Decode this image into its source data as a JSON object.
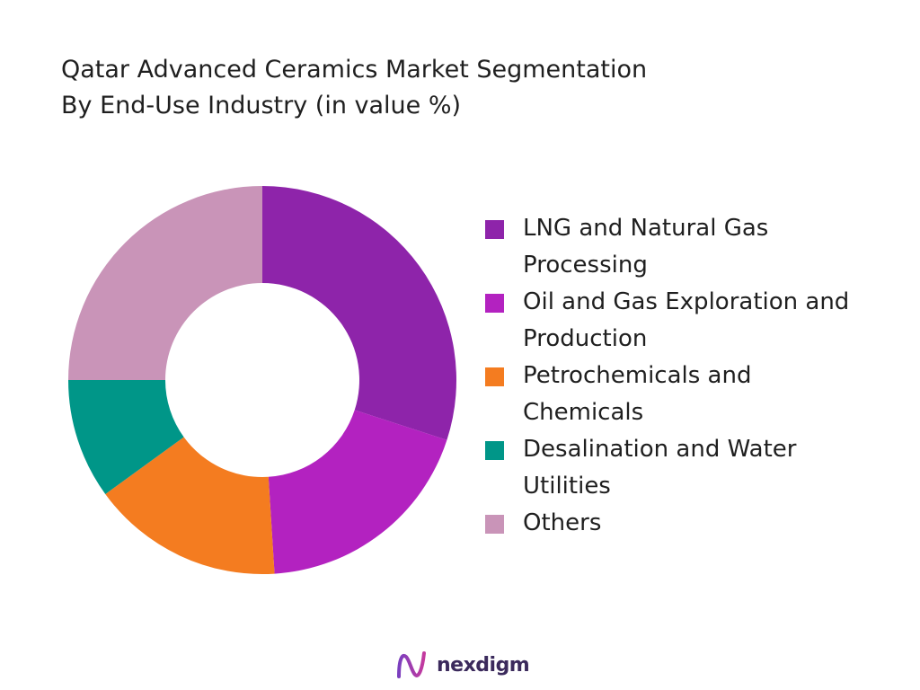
{
  "title_line1": "Qatar Advanced Ceramics Market Segmentation",
  "title_line2": "By End-Use Industry (in value %)",
  "chart_data": {
    "type": "pie",
    "variant": "donut",
    "title": "Qatar Advanced Ceramics Market Segmentation By End-Use Industry (in value %)",
    "legend_position": "right",
    "categories": [
      "LNG and Natural Gas Processing",
      "Oil and Gas Exploration and Production",
      "Petrochemicals and Chemicals",
      "Desalination and Water Utilities",
      "Others"
    ],
    "values": [
      30,
      19,
      16,
      10,
      25
    ],
    "colors": [
      "#8e24aa",
      "#b322c0",
      "#f47c20",
      "#009688",
      "#c994b8"
    ]
  },
  "legend": [
    {
      "line1": "LNG and Natural Gas",
      "line2": "Processing",
      "color": "#8e24aa"
    },
    {
      "line1": "Oil and Gas Exploration and",
      "line2": "Production",
      "color": "#b322c0"
    },
    {
      "line1": "Petrochemicals and",
      "line2": "Chemicals",
      "color": "#f47c20"
    },
    {
      "line1": "Desalination and Water",
      "line2": "Utilities",
      "color": "#009688"
    },
    {
      "line1": "Others",
      "line2": "",
      "color": "#c994b8"
    }
  ],
  "logo": {
    "text": "nexdigm",
    "icon": "nexdigm-logo-icon"
  }
}
